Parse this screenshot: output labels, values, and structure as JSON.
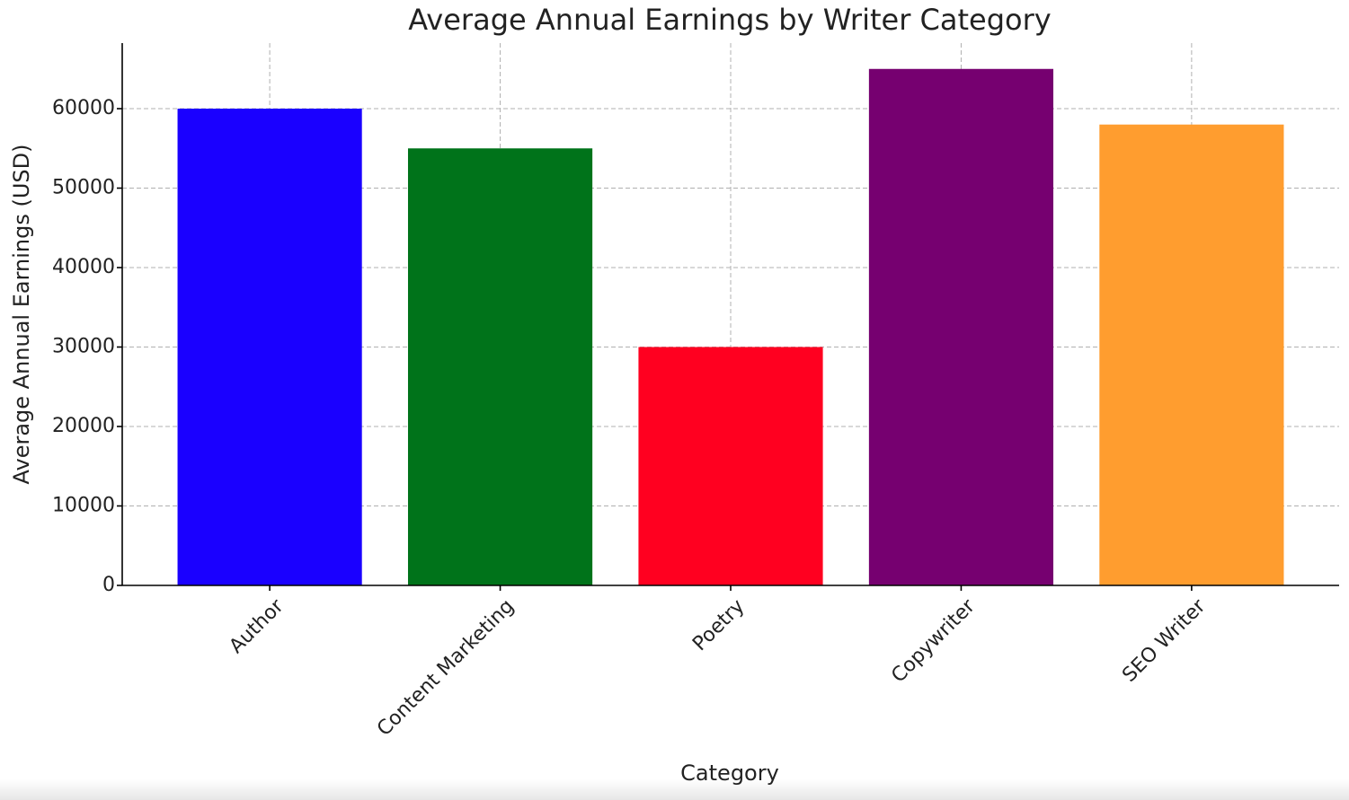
{
  "chart_data": {
    "type": "bar",
    "title": "Average Annual Earnings by Writer Category",
    "x_label": "Category",
    "y_label": "Average Annual Earnings (USD)",
    "categories": [
      "Author",
      "Content Marketing",
      "Poetry",
      "Copywriter",
      "SEO Writer"
    ],
    "values": [
      60000,
      55000,
      30000,
      65000,
      58000
    ],
    "colors": [
      "#1a00ff",
      "#00731a",
      "#ff0020",
      "#760070",
      "#ff9d2f"
    ],
    "ylim": [
      0,
      68250
    ],
    "yticks": [
      0,
      10000,
      20000,
      30000,
      40000,
      50000,
      60000
    ],
    "grid": true
  }
}
